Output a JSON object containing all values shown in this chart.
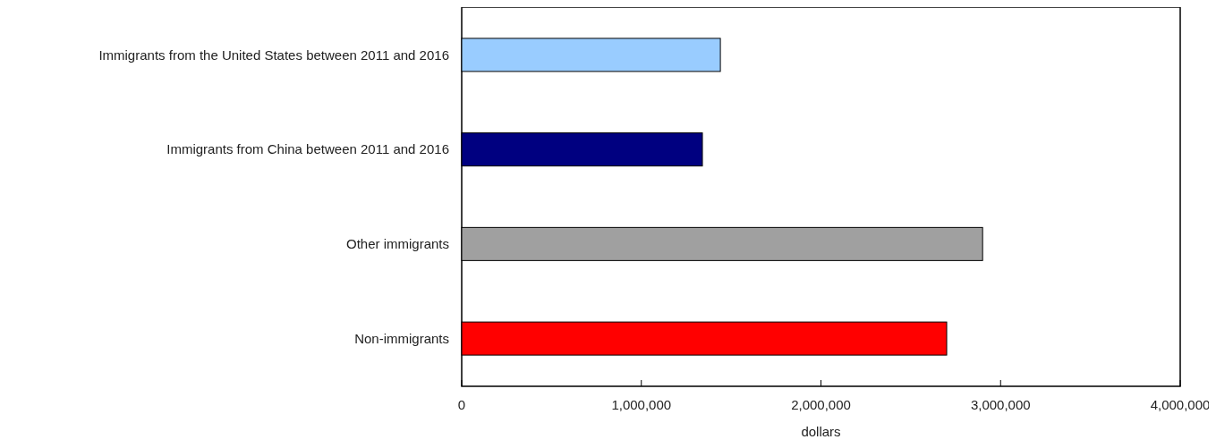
{
  "chart_data": {
    "type": "bar",
    "orientation": "horizontal",
    "xlabel": "dollars",
    "categories": [
      "Immigrants from the United States between 2011 and 2016",
      "Immigrants from China between 2011 and 2016",
      "Other immigrants",
      "Non-immigrants"
    ],
    "values": [
      1440000,
      1340000,
      2900000,
      2700000
    ],
    "colors": [
      "#99ccff",
      "#000080",
      "#a0a0a0",
      "#ff0000"
    ],
    "xlim": [
      0,
      4000000
    ],
    "xticks": [
      {
        "value": 0,
        "label": "0"
      },
      {
        "value": 1000000,
        "label": "1,000,000"
      },
      {
        "value": 2000000,
        "label": "2,000,000"
      },
      {
        "value": 3000000,
        "label": "3,000,000"
      },
      {
        "value": 4000000,
        "label": "4,000,000"
      }
    ],
    "grid": false
  }
}
